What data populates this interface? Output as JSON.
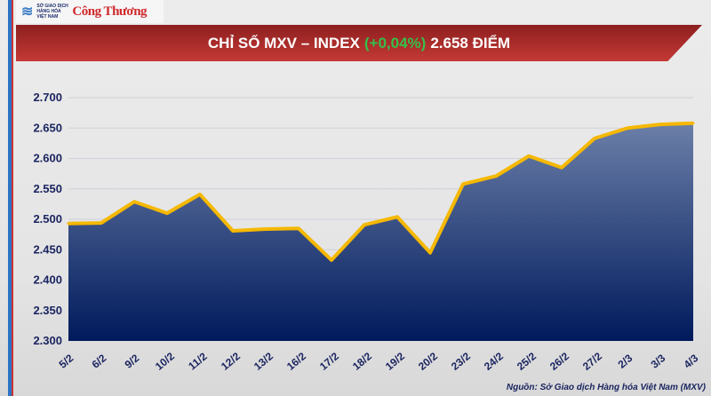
{
  "logo": {
    "org_text": "SỞ GIAO DỊCH HÀNG HÓA VIỆT NAM",
    "brand": "Công Thương"
  },
  "header": {
    "title_prefix": "CHỈ SỐ MXV – INDEX",
    "change": "(+0,04%)",
    "value_text": "2.658 ĐIỂM"
  },
  "colors": {
    "line": "#f5b800",
    "fill_top": "#6b7fa8",
    "fill_bottom": "#001a5c",
    "change": "#35c04a",
    "banner": "#b5302d"
  },
  "chart_data": {
    "type": "area",
    "categories": [
      "5/2",
      "6/2",
      "9/2",
      "10/2",
      "11/2",
      "12/2",
      "13/2",
      "16/2",
      "17/2",
      "18/2",
      "19/2",
      "20/2",
      "23/2",
      "24/2",
      "25/2",
      "26/2",
      "27/2",
      "2/3",
      "3/3",
      "4/3"
    ],
    "values": [
      2493,
      2494,
      2529,
      2510,
      2541,
      2481,
      2484,
      2485,
      2433,
      2491,
      2504,
      2445,
      2558,
      2571,
      2604,
      2585,
      2633,
      2650,
      2656,
      2658
    ],
    "ylim": [
      2300,
      2700
    ],
    "yticks": [
      "2.300",
      "2.350",
      "2.400",
      "2.450",
      "2.500",
      "2.550",
      "2.600",
      "2.650",
      "2.700"
    ],
    "grid": true
  },
  "source": "Nguồn: Sở Giao dịch Hàng hóa Việt Nam (MXV)"
}
